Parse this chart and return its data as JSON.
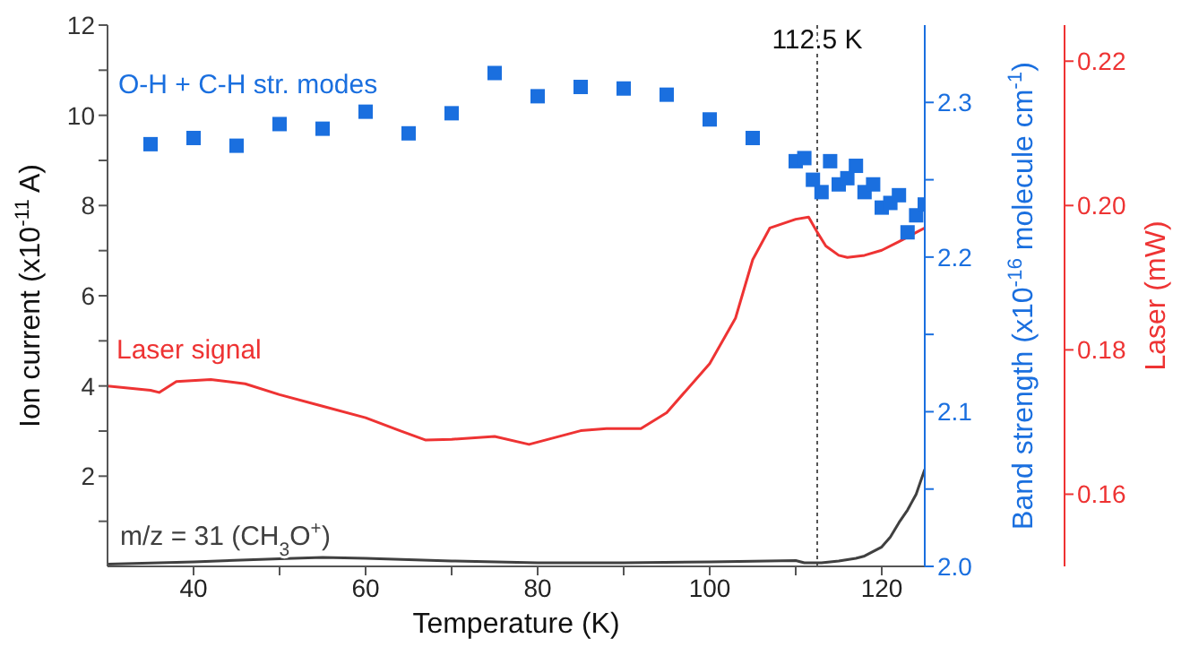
{
  "chart_data": {
    "type": "line",
    "xlabel": "Temperature (K)",
    "ylabel": "Ion current (x10$^{-11}$ A)",
    "y2label": "Band strength (x10$^{-16}$ molecule cm$^{-1}$)",
    "y3label": "Laser (mW)",
    "xlim": [
      30,
      125
    ],
    "xticks": [
      40,
      {
        "value": 50,
        "label": null
      },
      60,
      {
        "value": 70,
        "label": null
      },
      80,
      {
        "value": 90,
        "label": null
      },
      100,
      {
        "value": 110,
        "label": null
      },
      120
    ],
    "ylim": [
      0,
      12
    ],
    "yticks": [
      {
        "value": 1,
        "label": null
      },
      2,
      {
        "value": 3,
        "label": null
      },
      4,
      {
        "value": 5,
        "label": null
      },
      6,
      {
        "value": 7,
        "label": null
      },
      8,
      {
        "value": 9,
        "label": null
      },
      10,
      {
        "value": 11,
        "label": null
      },
      12
    ],
    "y2lim": [
      2.0,
      2.35
    ],
    "y2ticks": [
      {
        "value": 2.0,
        "label": "2.0"
      },
      {
        "value": 2.05,
        "label": null
      },
      2.1,
      {
        "value": 2.15,
        "label": null
      },
      2.2,
      {
        "value": 2.25,
        "label": null
      },
      2.3
    ],
    "y3lim": [
      0.15,
      0.225
    ],
    "y3ticks": [
      0.16,
      0.18,
      {
        "value": 0.2,
        "label": "0.20"
      },
      0.22
    ],
    "legend": false,
    "grid": false,
    "ref_lines": [
      {
        "axis": "x",
        "value": 112.5,
        "label": "112.5 K",
        "color": "#555555",
        "line_style": "dotted"
      }
    ],
    "series": [
      {
        "name": "m/z = 31 (CH$_{3}$O$^{+}$)",
        "type": "line",
        "color": "#404040",
        "marker": "none",
        "x": [
          30,
          40,
          50,
          55,
          60,
          70,
          80,
          90,
          100,
          110,
          111,
          113,
          115,
          117,
          118,
          120,
          121,
          122,
          123,
          124,
          125
        ],
        "values": [
          0.05,
          0.1,
          0.17,
          0.2,
          0.18,
          0.12,
          0.08,
          0.08,
          0.1,
          0.13,
          0.08,
          0.08,
          0.12,
          0.18,
          0.23,
          0.43,
          0.65,
          0.97,
          1.25,
          1.6,
          2.15
        ]
      },
      {
        "name": "O-H + C-H str. modes",
        "type": "scatter",
        "axis": "y2",
        "color": "#1a6fdf",
        "marker": "square",
        "x": [
          35,
          40,
          45,
          50,
          55,
          60,
          65,
          70,
          75,
          80,
          85,
          90,
          95,
          100,
          105,
          110,
          111,
          112,
          113,
          114,
          115,
          116,
          117,
          118,
          119,
          120,
          121,
          122,
          123,
          124,
          125
        ],
        "values": [
          2.273,
          2.277,
          2.272,
          2.286,
          2.283,
          2.294,
          2.28,
          2.293,
          2.319,
          2.304,
          2.31,
          2.309,
          2.305,
          2.289,
          2.277,
          2.262,
          2.264,
          2.25,
          2.242,
          2.262,
          2.247,
          2.251,
          2.259,
          2.242,
          2.247,
          2.232,
          2.235,
          2.24,
          2.216,
          2.227,
          2.234
        ]
      },
      {
        "name": "Laser signal",
        "type": "line",
        "axis": "y3",
        "color": "#ee3333",
        "marker": "none",
        "x": [
          30,
          35,
          36,
          38,
          42,
          46,
          50,
          55,
          60,
          64,
          67,
          70,
          75,
          79,
          85,
          88,
          92,
          95,
          100,
          103,
          105,
          107,
          110,
          111.5,
          112.5,
          113.5,
          115,
          116,
          118,
          120,
          122,
          125
        ],
        "values": [
          0.175,
          0.1744,
          0.1741,
          0.1756,
          0.1759,
          0.1753,
          0.1738,
          0.1722,
          0.1706,
          0.1688,
          0.1675,
          0.1676,
          0.168,
          0.1669,
          0.1688,
          0.1691,
          0.1691,
          0.1713,
          0.1781,
          0.1844,
          0.1925,
          0.1969,
          0.1981,
          0.1984,
          0.1963,
          0.1944,
          0.1931,
          0.1928,
          0.1931,
          0.1938,
          0.195,
          0.1969
        ]
      }
    ]
  }
}
